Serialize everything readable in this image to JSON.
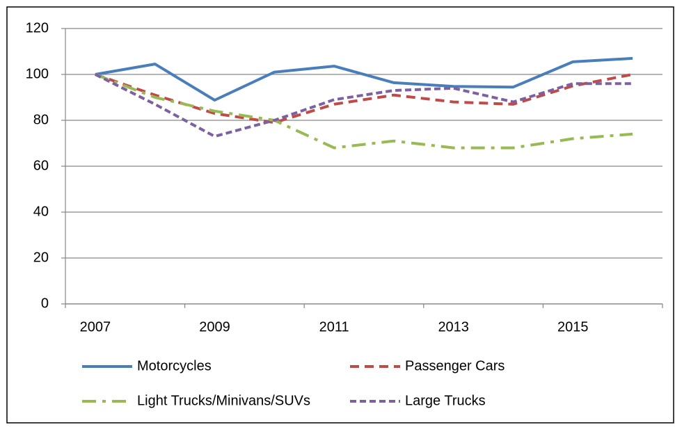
{
  "chart_data": {
    "type": "line",
    "categories": [
      "2007",
      null,
      "2009",
      null,
      "2011",
      null,
      "2013",
      null,
      "2015",
      null
    ],
    "ylim": [
      0,
      120
    ],
    "yticks": [
      0,
      20,
      40,
      60,
      80,
      100,
      120
    ],
    "grid": true,
    "legend": "bottom",
    "series": [
      {
        "name": "Motorcycles",
        "color": "#4a7ebb",
        "dash": "solid",
        "values": [
          100,
          104.5,
          88.8,
          101,
          103.6,
          96.4,
          94.8,
          94.5,
          105.5,
          107
        ]
      },
      {
        "name": "Passenger Cars",
        "color": "#be4b48",
        "dash": "dashed",
        "values": [
          100,
          91,
          83,
          79,
          87,
          91,
          88,
          87,
          95,
          100
        ]
      },
      {
        "name": "Light Trucks/Minivans/SUVs",
        "color": "#98b954",
        "dash": "dashdot",
        "values": [
          100,
          90,
          84,
          80,
          68,
          71,
          68,
          68,
          72,
          74
        ]
      },
      {
        "name": "Large Trucks",
        "color": "#7d60a0",
        "dash": "dotted",
        "values": [
          100,
          87,
          73,
          80,
          89,
          93,
          94,
          88,
          96,
          96
        ]
      }
    ]
  }
}
